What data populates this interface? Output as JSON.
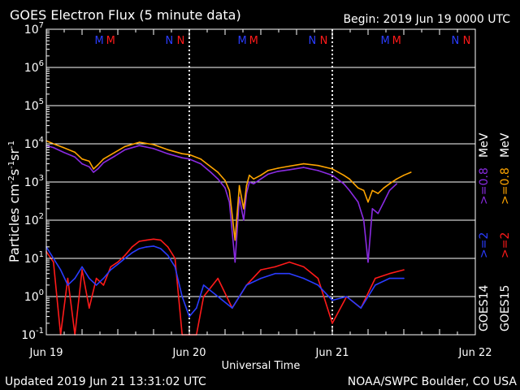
{
  "header": {
    "title": "GOES Electron Flux (5 minute data)",
    "begin": "Begin: 2019 Jun 19 0000 UTC"
  },
  "footer": {
    "updated": "Updated 2019 Jun 21 13:31:02 UTC",
    "credit": "NOAA/SWPC Boulder, CO USA"
  },
  "chart_data": {
    "type": "line",
    "title": "GOES Electron Flux (5 minute data)",
    "xlabel": "Universal Time",
    "ylabel": "Particles cm-2s-1sr-1",
    "y_scale": "log",
    "ylim": [
      0.1,
      10000000
    ],
    "y_ticks": [
      "10^-1",
      "10^0",
      "10^1",
      "10^2",
      "10^3",
      "10^4",
      "10^5",
      "10^6",
      "10^7"
    ],
    "x_ticks": [
      "Jun 19",
      "Jun 20",
      "Jun 21",
      "Jun 22"
    ],
    "xlim_days": [
      0,
      3
    ],
    "grid": true,
    "reference_line": {
      "value": 1000,
      "style": "dashed"
    },
    "markers": [
      {
        "label": "M",
        "day": 0.37,
        "color": "#2a3cff"
      },
      {
        "label": "M",
        "day": 0.45,
        "color": "#ff1a1a"
      },
      {
        "label": "N",
        "day": 0.86,
        "color": "#2a3cff"
      },
      {
        "label": "N",
        "day": 0.94,
        "color": "#ff1a1a"
      },
      {
        "label": "M",
        "day": 1.37,
        "color": "#2a3cff"
      },
      {
        "label": "M",
        "day": 1.45,
        "color": "#ff1a1a"
      },
      {
        "label": "N",
        "day": 1.86,
        "color": "#2a3cff"
      },
      {
        "label": "N",
        "day": 1.94,
        "color": "#ff1a1a"
      },
      {
        "label": "M",
        "day": 2.37,
        "color": "#2a3cff"
      },
      {
        "label": "M",
        "day": 2.45,
        "color": "#ff1a1a"
      },
      {
        "label": "N",
        "day": 2.86,
        "color": "#2a3cff"
      },
      {
        "label": "N",
        "day": 2.94,
        "color": "#ff1a1a"
      }
    ],
    "legend": {
      "placement": "right",
      "groups": [
        {
          "satellite": "GOES14",
          "entries": [
            {
              "label": ">=2",
              "color": "#2a3cff"
            },
            {
              "label": ">=0.8",
              "color": "#8a2be2"
            }
          ]
        },
        {
          "satellite": "GOES15",
          "entries": [
            {
              "label": ">=2",
              "color": "#ff1a1a"
            },
            {
              "label": ">=0.8",
              "color": "#ffa500"
            }
          ]
        }
      ],
      "unit": "MeV"
    },
    "series": [
      {
        "legend": "GOES15 >=0.8 MeV",
        "color": "#ffa500",
        "x": [
          0.0,
          0.05,
          0.12,
          0.2,
          0.25,
          0.3,
          0.33,
          0.36,
          0.4,
          0.48,
          0.55,
          0.65,
          0.75,
          0.85,
          0.95,
          1.0,
          1.08,
          1.15,
          1.2,
          1.25,
          1.28,
          1.32,
          1.35,
          1.38,
          1.4,
          1.42,
          1.45,
          1.5,
          1.55,
          1.62,
          1.7,
          1.8,
          1.9,
          2.0,
          2.08,
          2.12,
          2.18,
          2.22,
          2.25,
          2.28,
          2.32,
          2.36,
          2.4,
          2.45,
          2.5,
          2.55
        ],
        "y": [
          12000,
          10000,
          8000,
          6000,
          4000,
          3500,
          2200,
          2800,
          4000,
          6000,
          8500,
          11000,
          9500,
          7000,
          5500,
          5200,
          4000,
          2500,
          1800,
          1100,
          600,
          30,
          800,
          200,
          800,
          1500,
          1200,
          1500,
          2000,
          2300,
          2600,
          3000,
          2700,
          2200,
          1500,
          1200,
          700,
          600,
          300,
          600,
          500,
          700,
          900,
          1200,
          1500,
          1800
        ]
      },
      {
        "legend": "GOES14 >=0.8 MeV",
        "color": "#8a2be2",
        "x": [
          0.0,
          0.05,
          0.12,
          0.2,
          0.25,
          0.3,
          0.33,
          0.36,
          0.4,
          0.48,
          0.55,
          0.65,
          0.75,
          0.85,
          0.95,
          1.0,
          1.08,
          1.15,
          1.2,
          1.25,
          1.28,
          1.32,
          1.35,
          1.38,
          1.4,
          1.42,
          1.45,
          1.5,
          1.55,
          1.62,
          1.7,
          1.8,
          1.9,
          2.0,
          2.08,
          2.12,
          2.18,
          2.22,
          2.25,
          2.28,
          2.32,
          2.36,
          2.4,
          2.45
        ],
        "y": [
          9000,
          8000,
          6000,
          4500,
          3000,
          2500,
          1800,
          2200,
          3200,
          4800,
          7000,
          9000,
          7500,
          5500,
          4300,
          4000,
          3000,
          1800,
          1200,
          700,
          300,
          8,
          400,
          100,
          500,
          1000,
          900,
          1200,
          1600,
          1900,
          2100,
          2400,
          2000,
          1500,
          900,
          600,
          300,
          100,
          8,
          200,
          150,
          300,
          600,
          900
        ]
      },
      {
        "legend": "GOES15 >=2 MeV",
        "color": "#ff1a1a",
        "x": [
          0.0,
          0.05,
          0.1,
          0.15,
          0.2,
          0.25,
          0.3,
          0.35,
          0.4,
          0.45,
          0.5,
          0.55,
          0.6,
          0.65,
          0.7,
          0.75,
          0.8,
          0.85,
          0.9,
          0.95,
          1.0,
          1.05,
          1.1,
          1.2,
          1.3,
          1.4,
          1.5,
          1.6,
          1.7,
          1.8,
          1.9,
          2.0,
          2.1,
          2.2,
          2.3,
          2.4,
          2.5
        ],
        "y": [
          15,
          8,
          0.1,
          3,
          0.1,
          5,
          0.5,
          3,
          2,
          6,
          8,
          12,
          20,
          28,
          30,
          32,
          30,
          20,
          10,
          0.1,
          0.1,
          0.1,
          1,
          3,
          0.5,
          2,
          5,
          6,
          8,
          6,
          3,
          0.2,
          1,
          0.5,
          3,
          4,
          5
        ]
      },
      {
        "legend": "GOES14 >=2 MeV",
        "color": "#2a3cff",
        "x": [
          0.0,
          0.05,
          0.1,
          0.15,
          0.2,
          0.25,
          0.3,
          0.35,
          0.4,
          0.45,
          0.5,
          0.55,
          0.6,
          0.65,
          0.7,
          0.75,
          0.8,
          0.85,
          0.9,
          0.95,
          1.0,
          1.05,
          1.1,
          1.2,
          1.3,
          1.4,
          1.5,
          1.6,
          1.7,
          1.8,
          1.9,
          2.0,
          2.1,
          2.2,
          2.3,
          2.4,
          2.5
        ],
        "y": [
          20,
          10,
          5,
          2,
          3,
          6,
          3,
          2,
          3,
          5,
          7,
          10,
          14,
          18,
          20,
          21,
          18,
          12,
          6,
          1,
          0.3,
          0.5,
          2,
          1,
          0.5,
          2,
          3,
          4,
          4,
          3,
          2,
          0.8,
          1,
          0.5,
          2,
          3,
          3
        ]
      }
    ]
  }
}
